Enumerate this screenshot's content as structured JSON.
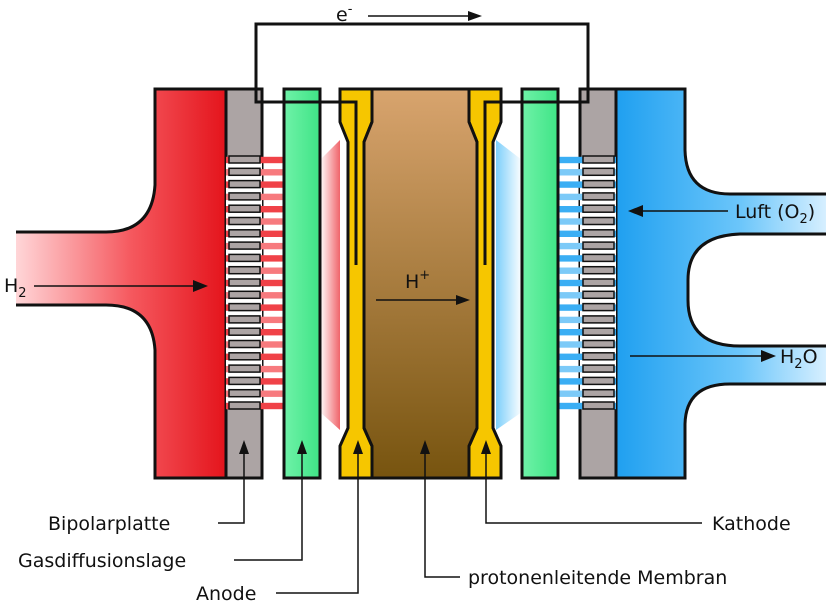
{
  "labels": {
    "electron": "e",
    "electron_sup": "-",
    "hydrogen": "H",
    "hydrogen_sub": "2",
    "proton": "H",
    "proton_sup": "+",
    "air_prefix": "Luft (O",
    "air_sub": "2",
    "air_suffix": ")",
    "water_h": "H",
    "water_sub": "2",
    "water_o": "O",
    "cathode": "Kathode",
    "membrane": "protonenleitende Membran",
    "bipolar": "Bipolarplatte",
    "gas_diffusion": "Gasdiffusionslage",
    "anode": "Anode"
  },
  "colors": {
    "hydrogen_side": "#ee1c24",
    "air_side": "#2aa8f2",
    "bipolar_plate": "#aca4a4",
    "gas_diffusion": "#4fef94",
    "electrode": "#f6c600",
    "membrane_top": "#d6a06c",
    "membrane_bottom": "#7a5612",
    "outline": "#111111"
  }
}
